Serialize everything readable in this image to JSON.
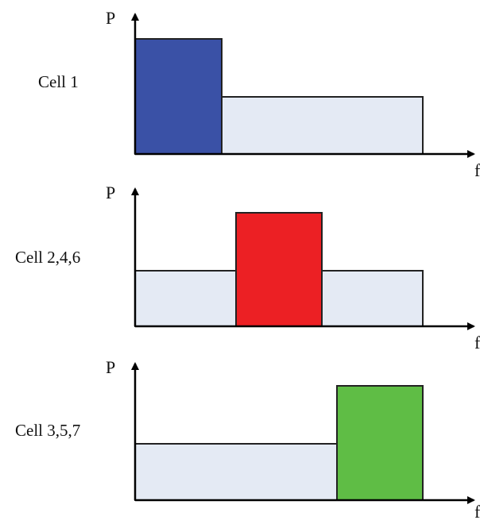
{
  "axis": {
    "y_label": "P",
    "x_label": "f"
  },
  "colors": {
    "low_power": "#e4eaf4",
    "outline": "#222222",
    "axis": "#000000"
  },
  "panels": [
    {
      "label": "Cell 1",
      "segments": [
        {
          "band": "low",
          "level": "high",
          "color": "#3a51a6"
        },
        {
          "band": "mid-high",
          "level": "low",
          "color": "#e4eaf4"
        }
      ]
    },
    {
      "label": "Cell 2,4,6",
      "segments": [
        {
          "band": "low",
          "level": "low",
          "color": "#e4eaf4"
        },
        {
          "band": "mid",
          "level": "high",
          "color": "#ec2024"
        },
        {
          "band": "high",
          "level": "low",
          "color": "#e4eaf4"
        }
      ]
    },
    {
      "label": "Cell 3,5,7",
      "segments": [
        {
          "band": "low-mid",
          "level": "low",
          "color": "#e4eaf4"
        },
        {
          "band": "high",
          "level": "high",
          "color": "#5fbd45"
        }
      ]
    }
  ]
}
